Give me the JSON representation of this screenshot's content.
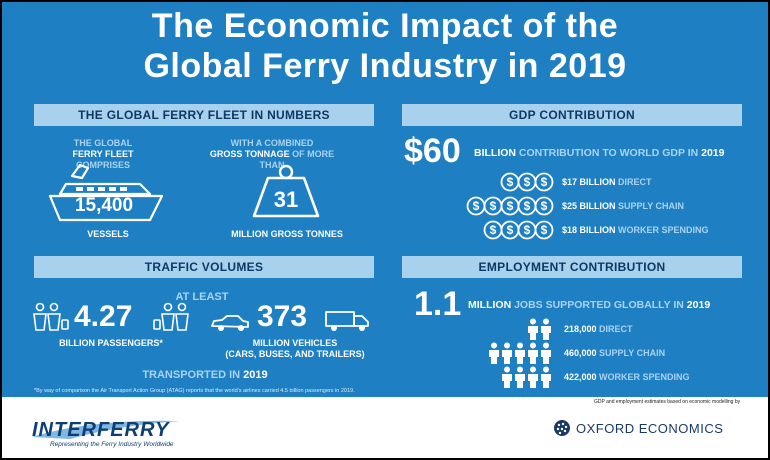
{
  "title": {
    "line1": "The Economic Impact of the",
    "line2": "Global Ferry Industry in 2019"
  },
  "fleet": {
    "header": "THE GLOBAL FERRY FLEET IN NUMBERS",
    "left_pre1": "THE GLOBAL",
    "left_pre2a": "FERRY FLEET",
    "left_pre2b": " COMPRISES",
    "vessels_value": "15,400",
    "vessels_label": "VESSELS",
    "right_pre1": "WITH A COMBINED",
    "right_pre2a": "GROSS TONNAGE",
    "right_pre2b": " OF MORE THAN",
    "tonnage_value": "31",
    "tonnage_label": "MILLION GROSS TONNES"
  },
  "gdp": {
    "header": "GDP CONTRIBUTION",
    "big_value": "$60",
    "billion": "BILLION",
    "desc": " CONTRIBUTION TO WORLD GDP IN ",
    "year": "2019",
    "rows": [
      {
        "coins": 3,
        "amount": "$17 BILLION",
        "label": " DIRECT"
      },
      {
        "coins": 5,
        "amount": "$25 BILLION",
        "label": " SUPPLY CHAIN"
      },
      {
        "coins": 4,
        "amount": "$18 BILLION",
        "label": " WORKER SPENDING"
      }
    ]
  },
  "traffic": {
    "header": "TRAFFIC VOLUMES",
    "at_least": "AT LEAST",
    "passengers_value": "4.27",
    "passengers_label": "BILLION PASSENGERS*",
    "vehicles_value": "373",
    "vehicles_label1": "MILLION VEHICLES",
    "vehicles_label2": "(CARS, BUSES, AND TRAILERS)",
    "transported": "TRANSPORTED IN ",
    "transported_year": "2019",
    "footnote": "*By way of comparison the Air Transport Action Group (ATAG) reports that the world's airlines carried 4.5 billion passengers in 2019."
  },
  "employment": {
    "header": "EMPLOYMENT CONTRIBUTION",
    "big_value": "1.1",
    "million": "MILLION",
    "desc": " JOBS SUPPORTED GLOBALLY IN ",
    "year": "2019",
    "rows": [
      {
        "people": 2,
        "value": "218,000",
        "label": " DIRECT"
      },
      {
        "people": 5,
        "value": "460,000",
        "label": " SUPPLY CHAIN"
      },
      {
        "people": 4,
        "value": "422,000",
        "label": " WORKER SPENDING"
      }
    ],
    "note": "GDP and employment estimates based on economic modelling by"
  },
  "footer": {
    "interferry_logo": "INTERFERRY",
    "interferry_tagline": "Representing the Ferry Industry Worldwide",
    "oxford_logo": "OXFORD ECONOMICS"
  },
  "colors": {
    "background": "#1f7fc3",
    "band": "#a8d1ee",
    "band_text": "#0c3a66",
    "accent_text": "#a9d3f0"
  }
}
